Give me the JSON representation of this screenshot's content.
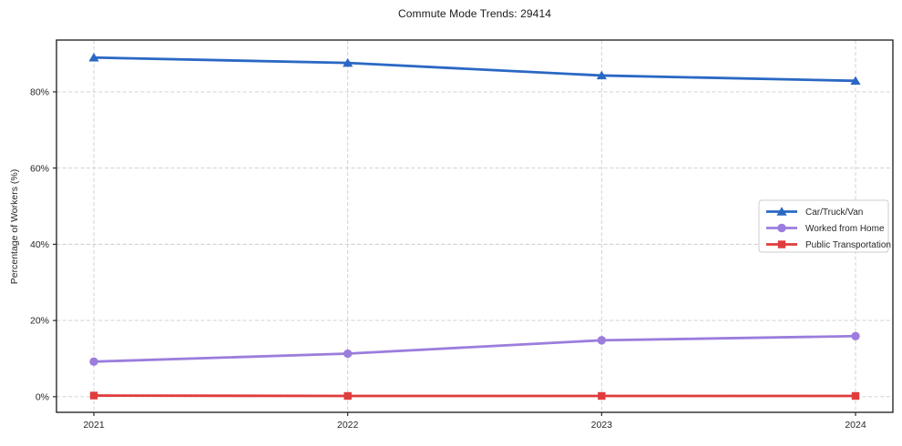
{
  "chart_data": {
    "type": "line",
    "title": "Commute Mode Trends: 29414",
    "xlabel": "",
    "ylabel": "Percentage of Workers (%)",
    "x": [
      2021,
      2022,
      2023,
      2024
    ],
    "x_tick_labels": [
      "2021",
      "2022",
      "2023",
      "2024"
    ],
    "y_ticks": [
      0,
      20,
      40,
      60,
      80
    ],
    "y_tick_labels": [
      "0%",
      "20%",
      "40%",
      "60%",
      "80%"
    ],
    "ylim": [
      -4.1,
      93.6
    ],
    "grid": true,
    "grid_style": "dashed",
    "legend_position": "center-right",
    "series": [
      {
        "name": "Car/Truck/Van",
        "color": "#2a68c4",
        "marker": "triangle",
        "values": [
          89.0,
          87.6,
          84.3,
          82.9
        ]
      },
      {
        "name": "Worked from Home",
        "color": "#9b7ddd",
        "marker": "circle",
        "values": [
          9.2,
          11.3,
          14.8,
          15.9
        ]
      },
      {
        "name": "Public Transportation",
        "color": "#e03c3c",
        "marker": "square",
        "values": [
          0.3,
          0.2,
          0.2,
          0.2
        ]
      }
    ],
    "colors": {
      "grid": "#cccccc",
      "spine": "#1a1a1a",
      "tick_text": "#262626",
      "legend_border": "#cccccc",
      "legend_bg": "#ffffff"
    }
  }
}
